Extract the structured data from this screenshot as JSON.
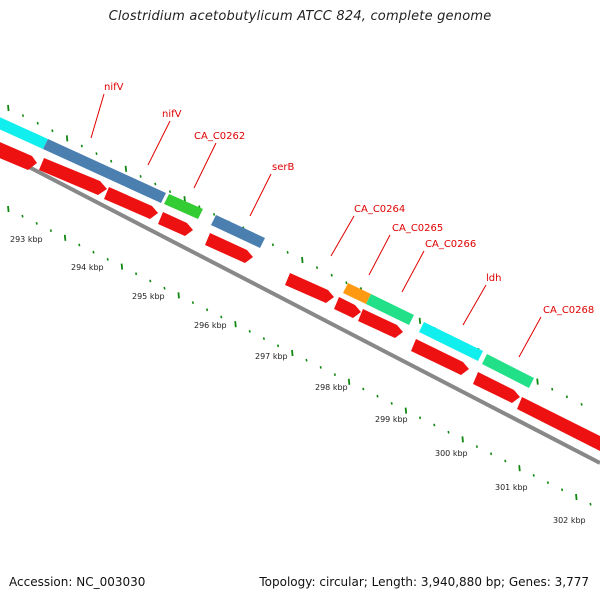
{
  "title": "Clostridium acetobutylicum ATCC 824, complete genome",
  "footer": {
    "accession": "Accession: NC_003030",
    "stats": "Topology: circular; Length: 3,940,880 bp; Genes: 3,777"
  },
  "colors": {
    "cds_red": "#ee1111",
    "steel_blue": "#4a7fb0",
    "cyan": "#11eeee",
    "green": "#33cc33",
    "teal_green": "#22e088",
    "orange": "#ff9911",
    "backbone": "#888888",
    "tick_green": "#118811",
    "label_red": "#e00000"
  },
  "feature_labels": [
    {
      "name": "nifV"
    },
    {
      "name": "nifV"
    },
    {
      "name": "CA_C0262"
    },
    {
      "name": "serB"
    },
    {
      "name": "CA_C0264"
    },
    {
      "name": "CA_C0265"
    },
    {
      "name": "CA_C0266"
    },
    {
      "name": "ldh"
    },
    {
      "name": "CA_C0268"
    }
  ],
  "scale_ticks": [
    {
      "label": "293 kbp"
    },
    {
      "label": "294 kbp"
    },
    {
      "label": "295 kbp"
    },
    {
      "label": "296 kbp"
    },
    {
      "label": "297 kbp"
    },
    {
      "label": "298 kbp"
    },
    {
      "label": "299 kbp"
    },
    {
      "label": "300 kbp"
    },
    {
      "label": "301 kbp"
    },
    {
      "label": "302 kbp"
    }
  ]
}
